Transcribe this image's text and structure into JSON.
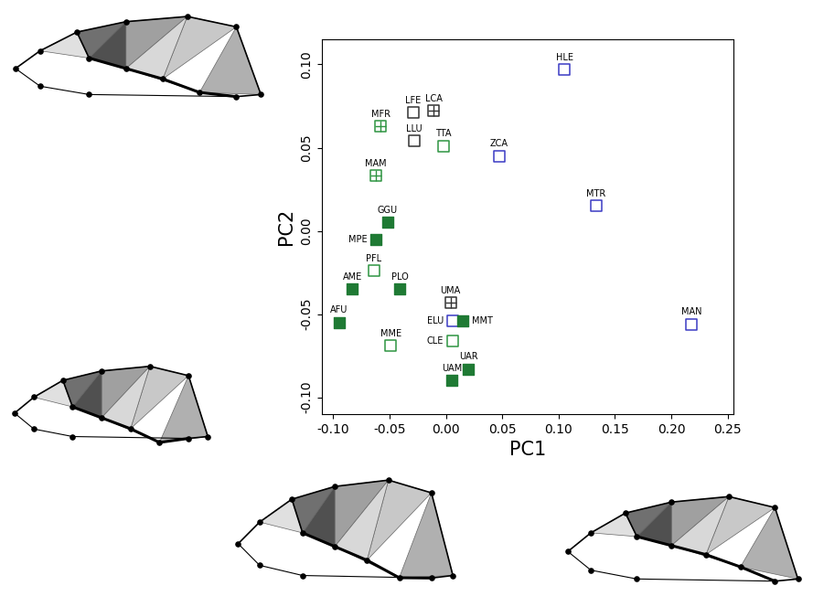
{
  "chart_data": {
    "type": "scatter",
    "x_label": "PC1",
    "y_label": "PC2",
    "xlim": [
      -0.11,
      0.255
    ],
    "ylim": [
      -0.11,
      0.115
    ],
    "xticks": [
      {
        "value": -0.1,
        "label": "-0.10"
      },
      {
        "value": -0.05,
        "label": "-0.05"
      },
      {
        "value": 0.0,
        "label": "0.00"
      },
      {
        "value": 0.05,
        "label": "0.05"
      },
      {
        "value": 0.1,
        "label": "0.10"
      },
      {
        "value": 0.15,
        "label": "0.15"
      },
      {
        "value": 0.2,
        "label": "0.20"
      },
      {
        "value": 0.25,
        "label": "0.25"
      }
    ],
    "yticks": [
      {
        "value": -0.1,
        "label": "-0.10"
      },
      {
        "value": -0.05,
        "label": "-0.05"
      },
      {
        "value": 0.0,
        "label": "0.00"
      },
      {
        "value": 0.05,
        "label": "0.05"
      },
      {
        "value": 0.1,
        "label": "0.10"
      }
    ],
    "grid": false,
    "points": [
      {
        "label": "HLE",
        "x": 0.105,
        "y": 0.097,
        "color": "#3b3bc4",
        "marker": "square"
      },
      {
        "label": "LFE",
        "x": -0.029,
        "y": 0.071,
        "color": "#333333",
        "marker": "square"
      },
      {
        "label": "LCA",
        "x": -0.011,
        "y": 0.072,
        "color": "#333333",
        "marker": "square_cross"
      },
      {
        "label": "MFR",
        "x": -0.058,
        "y": 0.063,
        "color": "#2e9441",
        "marker": "square_cross"
      },
      {
        "label": "LLU",
        "x": -0.028,
        "y": 0.054,
        "color": "#333333",
        "marker": "square"
      },
      {
        "label": "TTA",
        "x": -0.002,
        "y": 0.051,
        "color": "#2e9441",
        "marker": "square"
      },
      {
        "label": "ZCA",
        "x": 0.047,
        "y": 0.045,
        "color": "#3b3bc4",
        "marker": "square"
      },
      {
        "label": "MTR",
        "x": 0.133,
        "y": 0.015,
        "color": "#3b3bc4",
        "marker": "square"
      },
      {
        "label": "MAM",
        "x": -0.062,
        "y": 0.033,
        "color": "#2e9441",
        "marker": "square_cross"
      },
      {
        "label": "GGU",
        "x": -0.052,
        "y": 0.005,
        "color": "#1f7a34",
        "marker": "square_filled"
      },
      {
        "label": "MPE",
        "x": -0.062,
        "y": -0.005,
        "color": "#1f7a34",
        "marker": "square_filled"
      },
      {
        "label": "PFL",
        "x": -0.064,
        "y": -0.024,
        "color": "#2e9441",
        "marker": "square"
      },
      {
        "label": "AME",
        "x": -0.083,
        "y": -0.035,
        "color": "#1f7a34",
        "marker": "square_filled"
      },
      {
        "label": "PLO",
        "x": -0.041,
        "y": -0.035,
        "color": "#1f7a34",
        "marker": "square_filled"
      },
      {
        "label": "AFU",
        "x": -0.095,
        "y": -0.055,
        "color": "#1f7a34",
        "marker": "square_filled"
      },
      {
        "label": "MME",
        "x": -0.049,
        "y": -0.069,
        "color": "#2e9441",
        "marker": "square"
      },
      {
        "label": "UMA",
        "x": 0.004,
        "y": -0.043,
        "color": "#333333",
        "marker": "square_cross"
      },
      {
        "label": "ELU",
        "x": 0.006,
        "y": -0.054,
        "color": "#3b3bc4",
        "marker": "square"
      },
      {
        "label": "MMT",
        "x": 0.015,
        "y": -0.054,
        "color": "#1f7a34",
        "marker": "square_filled"
      },
      {
        "label": "CLE",
        "x": 0.006,
        "y": -0.066,
        "color": "#2e9441",
        "marker": "square"
      },
      {
        "label": "UAR",
        "x": 0.02,
        "y": -0.083,
        "color": "#1f7a34",
        "marker": "square_filled"
      },
      {
        "label": "UAM",
        "x": 0.005,
        "y": -0.09,
        "color": "#1f7a34",
        "marker": "square_filled"
      },
      {
        "label": "MAN",
        "x": 0.218,
        "y": -0.056,
        "color": "#3b3bc4",
        "marker": "square"
      }
    ]
  }
}
